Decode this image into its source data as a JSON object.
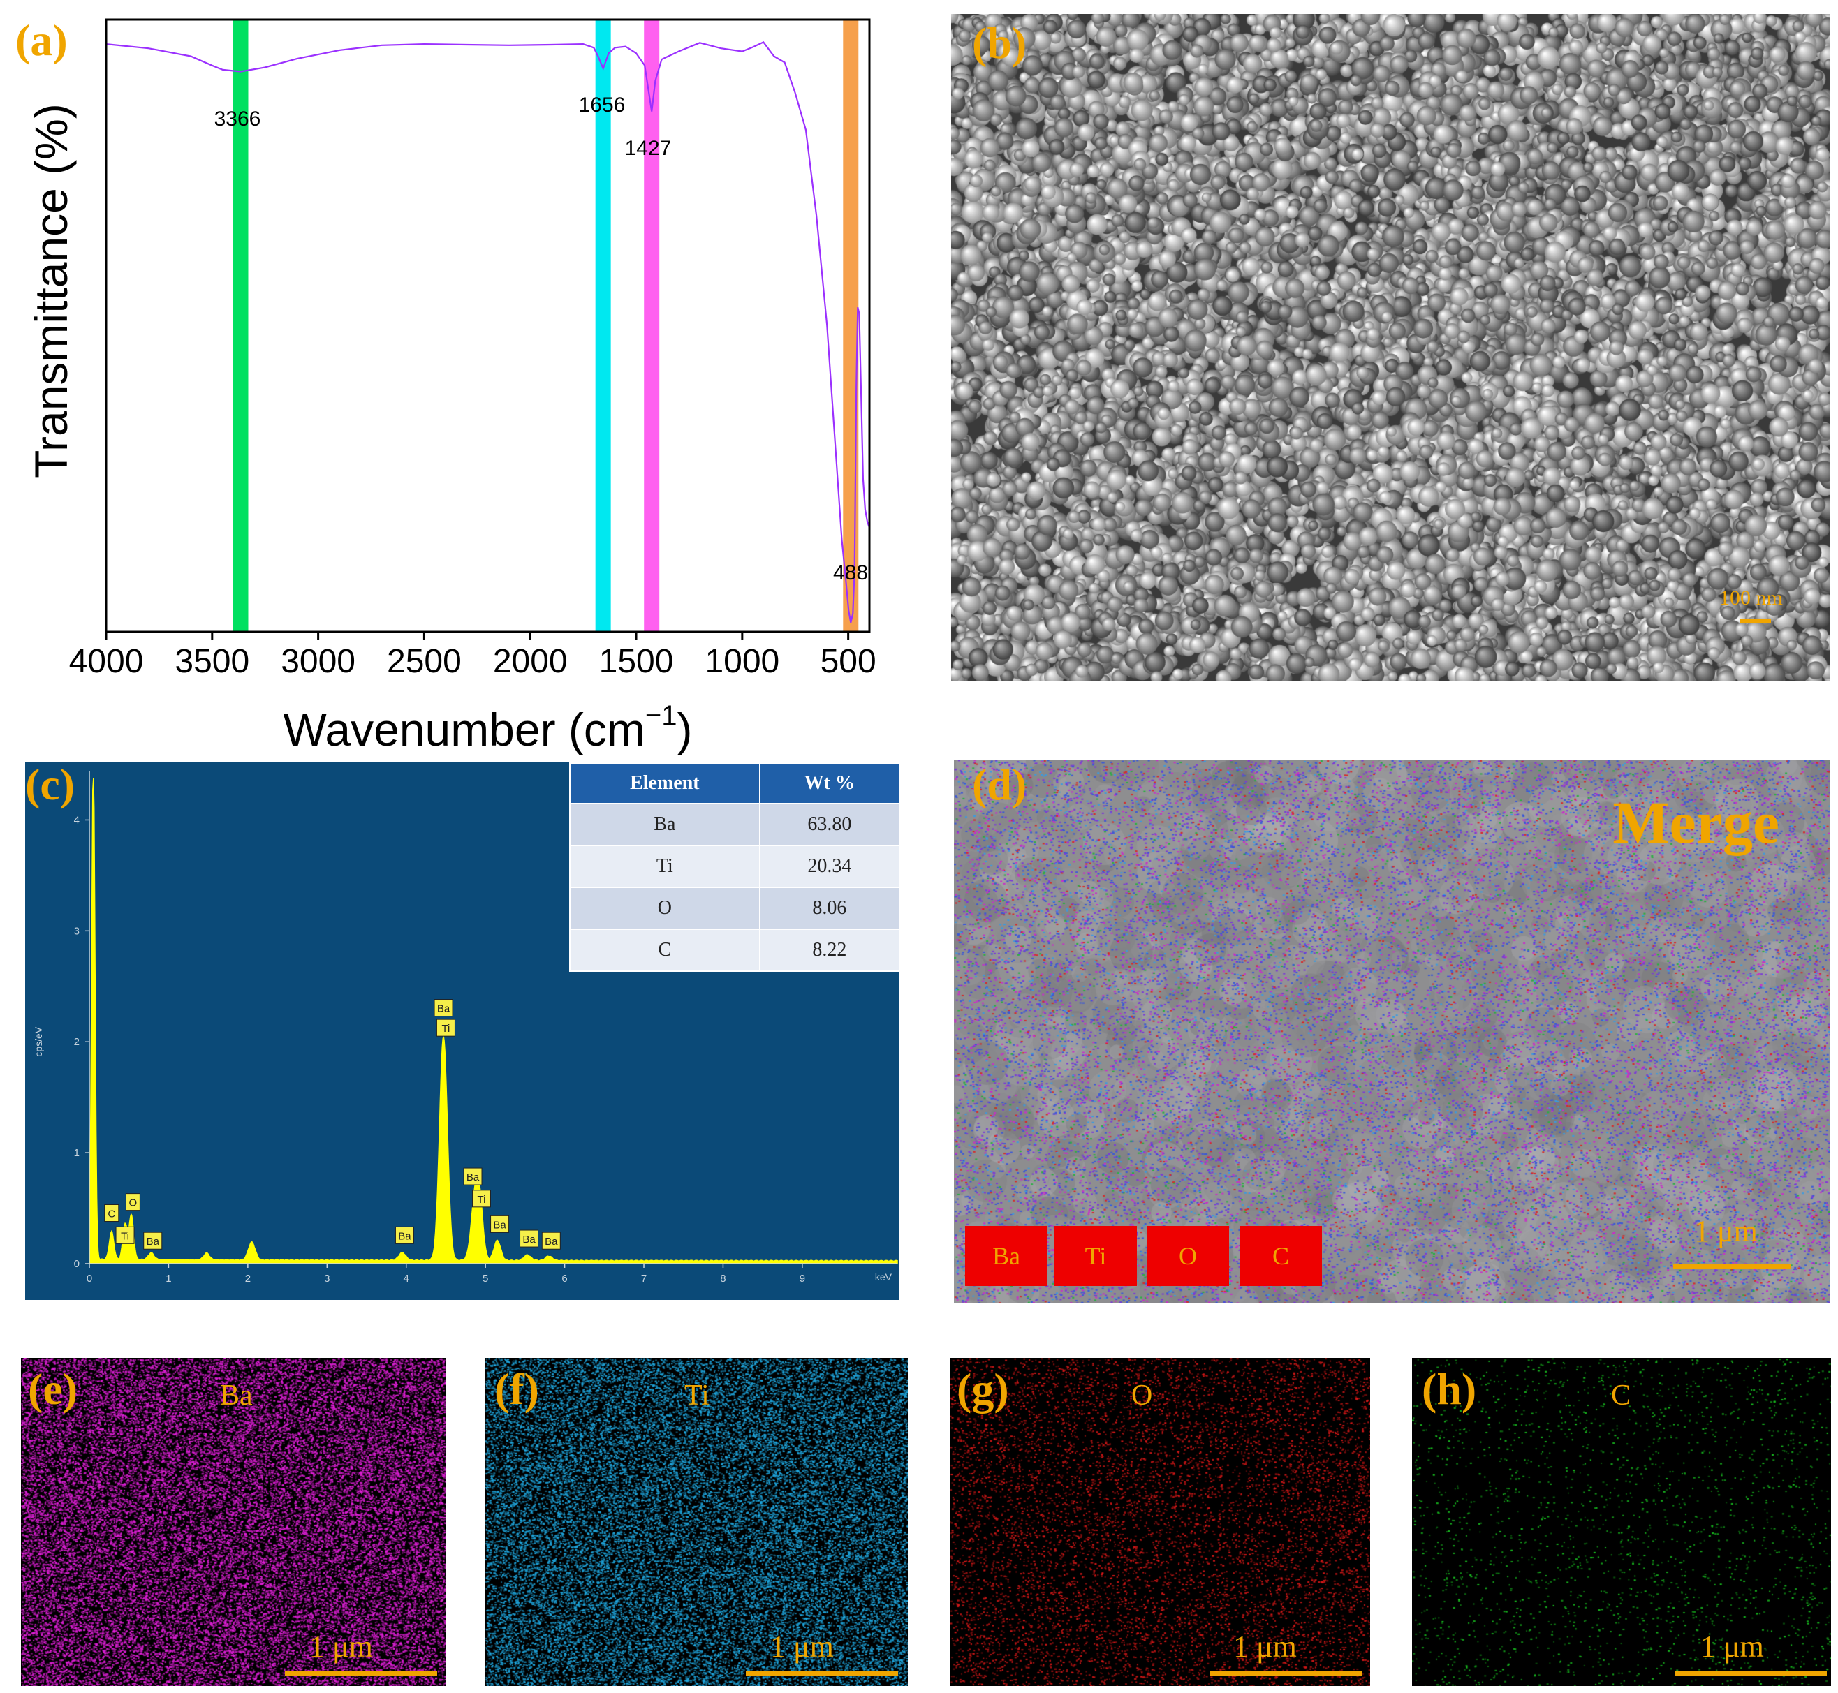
{
  "colors": {
    "accent_letter": "#f0a500",
    "ftir_line": "#9b30ff",
    "band_green": "#00e060",
    "band_cyan": "#00e8f0",
    "band_magenta": "#ff60f0",
    "band_orange": "#f6a04c",
    "eds_bg": "#0b4a78",
    "eds_spectrum": "#ffff00"
  },
  "panels": {
    "a": "(a)",
    "b": "(b)",
    "c": "(c)",
    "d": "(d)",
    "e": "(e)",
    "f": "(f)",
    "g": "(g)",
    "h": "(h)"
  },
  "chart_data": [
    {
      "type": "line",
      "panel": "a",
      "xlabel": "Wavenumber (cm",
      "xlabel_sup": "−1",
      "xlabel_close": ")",
      "ylabel": "Transmittance (%)",
      "xlim": [
        4000,
        400
      ],
      "ylim": [
        0,
        100
      ],
      "xticks": [
        4000,
        3500,
        3000,
        2500,
        2000,
        1500,
        1000,
        500
      ],
      "series": [
        {
          "x": [
            4000,
            3800,
            3600,
            3500,
            3450,
            3366,
            3250,
            3100,
            2900,
            2700,
            2500,
            2300,
            2100,
            1900,
            1750,
            1700,
            1680,
            1656,
            1630,
            1600,
            1550,
            1500,
            1460,
            1440,
            1427,
            1410,
            1380,
            1300,
            1200,
            1100,
            1000,
            950,
            900,
            850,
            800,
            750,
            700,
            650,
            600,
            560,
            530,
            510,
            498,
            488,
            478,
            470,
            462,
            455,
            448,
            440,
            430,
            420,
            410,
            400
          ],
          "y": [
            96,
            95.3,
            94,
            92.5,
            91.8,
            91.5,
            92.2,
            93.6,
            95,
            95.8,
            96,
            95.9,
            95.8,
            95.9,
            96,
            95.4,
            94,
            92,
            94.5,
            95.4,
            95.6,
            94.5,
            92.5,
            88,
            85,
            90,
            93.5,
            94.8,
            96.2,
            95.3,
            94.8,
            95.5,
            96.3,
            94,
            93,
            88,
            82,
            68,
            50,
            30,
            15,
            8,
            3.5,
            1.5,
            3,
            10,
            40,
            53,
            52,
            40,
            25,
            20,
            18,
            17
          ]
        }
      ],
      "bands": [
        {
          "center": 3366,
          "label": "3366",
          "color": "#00e060"
        },
        {
          "center": 1656,
          "label": "1656",
          "color": "#00e8f0"
        },
        {
          "center": 1427,
          "label": "1427",
          "color": "#ff60f0"
        },
        {
          "center": 488,
          "label": "488",
          "color": "#f6a04c"
        }
      ]
    },
    {
      "type": "line",
      "panel": "c",
      "xunit": "keV",
      "yunit": "cps/eV",
      "xlim": [
        0,
        10.2
      ],
      "ylim": [
        0,
        4.5
      ],
      "xticks": [
        0,
        1,
        2,
        3,
        4,
        5,
        6,
        7,
        8,
        9
      ],
      "yticks": [
        0,
        1,
        2,
        3,
        4
      ],
      "peaks": [
        {
          "x": 0.05,
          "h": 4.5,
          "w": 0.03
        },
        {
          "x": 0.28,
          "h": 0.25,
          "w": 0.04
        },
        {
          "x": 0.45,
          "h": 0.32,
          "w": 0.04
        },
        {
          "x": 0.53,
          "h": 0.4,
          "w": 0.04
        },
        {
          "x": 0.78,
          "h": 0.06,
          "w": 0.05
        },
        {
          "x": 1.48,
          "h": 0.06,
          "w": 0.05
        },
        {
          "x": 2.05,
          "h": 0.16,
          "w": 0.06
        },
        {
          "x": 3.95,
          "h": 0.07,
          "w": 0.06
        },
        {
          "x": 4.47,
          "h": 2.02,
          "w": 0.07
        },
        {
          "x": 4.87,
          "h": 0.55,
          "w": 0.07
        },
        {
          "x": 4.93,
          "h": 0.4,
          "w": 0.06
        },
        {
          "x": 5.15,
          "h": 0.18,
          "w": 0.06
        },
        {
          "x": 5.53,
          "h": 0.05,
          "w": 0.06
        },
        {
          "x": 5.8,
          "h": 0.04,
          "w": 0.06
        }
      ],
      "labels": [
        {
          "text": "C",
          "x": 0.28,
          "y": 0.45
        },
        {
          "text": "Ti",
          "x": 0.45,
          "y": 0.25
        },
        {
          "text": "O",
          "x": 0.55,
          "y": 0.55
        },
        {
          "text": "Ba",
          "x": 0.8,
          "y": 0.2
        },
        {
          "text": "Ba",
          "x": 3.98,
          "y": 0.25
        },
        {
          "text": "Ba",
          "x": 4.47,
          "y": 2.3
        },
        {
          "text": "Ti",
          "x": 4.5,
          "y": 2.12
        },
        {
          "text": "Ba",
          "x": 4.84,
          "y": 0.78
        },
        {
          "text": "Ti",
          "x": 4.95,
          "y": 0.58
        },
        {
          "text": "Ba",
          "x": 5.18,
          "y": 0.35
        },
        {
          "text": "Ba",
          "x": 5.55,
          "y": 0.22
        },
        {
          "text": "Ba",
          "x": 5.83,
          "y": 0.2
        }
      ]
    }
  ],
  "eds_table": {
    "headers": [
      "Element",
      "Wt %"
    ],
    "rows": [
      [
        "Ba",
        "63.80"
      ],
      [
        "Ti",
        "20.34"
      ],
      [
        "O",
        "8.06"
      ],
      [
        "C",
        "8.22"
      ]
    ]
  },
  "sem": {
    "scale": "100 nm"
  },
  "merge": {
    "title": "Merge",
    "scale": "1 μm",
    "legend": [
      "Ba",
      "Ti",
      "O",
      "C"
    ]
  },
  "maps": [
    {
      "title": "Ba",
      "scale": "1 μm",
      "color": "#e020d8"
    },
    {
      "title": "Ti",
      "scale": "1 μm",
      "color": "#20a8e0"
    },
    {
      "title": "O",
      "scale": "1 μm",
      "color": "#d81818"
    },
    {
      "title": "C",
      "scale": "1 μm",
      "color": "#18c020"
    }
  ]
}
